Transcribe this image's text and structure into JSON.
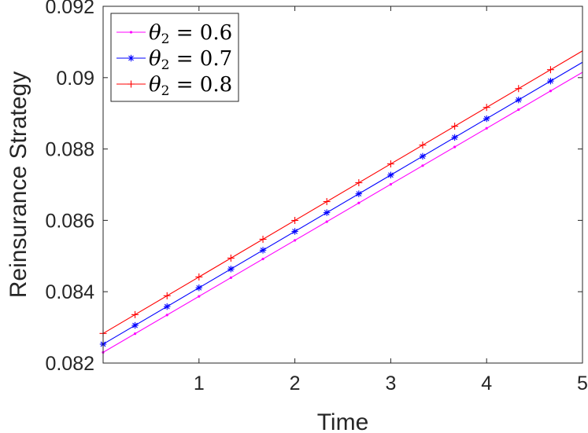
{
  "chart_data": {
    "type": "line",
    "title": "",
    "xlabel": "Time",
    "ylabel": "Reinsurance Strategy",
    "xlim": [
      0,
      5
    ],
    "ylim": [
      0.082,
      0.092
    ],
    "xticks": [
      1,
      2,
      3,
      4,
      5
    ],
    "xtick_labels": [
      "1",
      "2",
      "3",
      "4",
      "5"
    ],
    "yticks": [
      0.082,
      0.084,
      0.086,
      0.088,
      0.09,
      0.092
    ],
    "ytick_labels": [
      "0.082",
      "0.084",
      "0.086",
      "0.088",
      "0.09",
      "0.092"
    ],
    "grid": false,
    "legend_position": "top-left",
    "marker_x": [
      0,
      0.333,
      0.667,
      1,
      1.333,
      1.667,
      2,
      2.333,
      2.667,
      3,
      3.333,
      3.667,
      4,
      4.333,
      4.667
    ],
    "series": [
      {
        "name": "0.6",
        "legend_prefix": "θ",
        "legend_subscript": "2",
        "legend_equals": " = ",
        "color": "#ff00ff",
        "marker": "dot",
        "start": 0.0823,
        "end": 0.09015
      },
      {
        "name": "0.7",
        "legend_prefix": "θ",
        "legend_subscript": "2",
        "legend_equals": " = ",
        "color": "#0000ff",
        "marker": "star",
        "start": 0.08253,
        "end": 0.09043
      },
      {
        "name": "0.8",
        "legend_prefix": "θ",
        "legend_subscript": "2",
        "legend_equals": " = ",
        "color": "#ff0000",
        "marker": "plus",
        "start": 0.08283,
        "end": 0.09075
      }
    ]
  }
}
